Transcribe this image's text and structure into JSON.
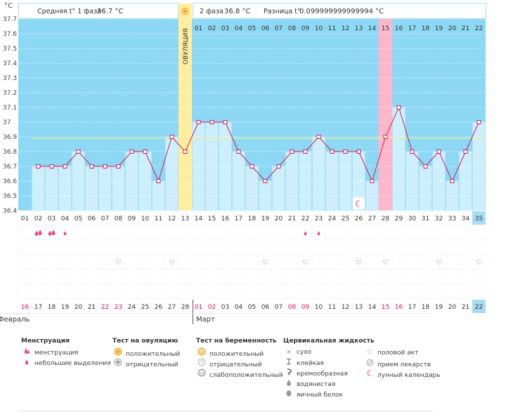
{
  "header": {
    "phase1_label": "Средняя t° 1 фаза",
    "phase1_value": "36.7 °С",
    "phase2_label": "2 фаза",
    "phase2_value": "36.8 °С",
    "diff_label": "Разница t°",
    "diff_value": "0.099999999999994 °С"
  },
  "axis": {
    "unit": "°С",
    "ovulation_label": "ОВУЛЯЦИЯ"
  },
  "months": {
    "feb": "Февраль",
    "mar": "Март"
  },
  "colors": {
    "sky": "#8dd8f5",
    "bar": "#cdeefc",
    "bar_border": "#a9dff5",
    "line": "#d0205a",
    "ovulation": "#ffee9d",
    "highlight": "#ffb6c8",
    "cover_line": "#e8f08a",
    "today_box": "#a7dbf3",
    "red_text": "#dd1155"
  },
  "chart_data": {
    "type": "line",
    "title": "",
    "ylabel": "°С",
    "ylim": [
      36.4,
      37.7
    ],
    "yticks": [
      37.7,
      37.6,
      37.5,
      37.4,
      37.3,
      37.2,
      37.1,
      37.0,
      36.9,
      36.8,
      36.7,
      36.6,
      36.5,
      36.4
    ],
    "ytick_labels": [
      "37.7",
      "37.6",
      "37.5",
      "37.4",
      "37.3",
      "37.2",
      "37.1",
      "37",
      "36.9",
      "36.8",
      "36.7",
      "36.6",
      "36.5",
      "36.4"
    ],
    "cycle_days": [
      "01",
      "02",
      "03",
      "04",
      "05",
      "06",
      "07",
      "08",
      "09",
      "10",
      "11",
      "12",
      "13",
      "14",
      "15",
      "16",
      "17",
      "18",
      "19",
      "20",
      "21",
      "22",
      "23",
      "24",
      "25",
      "26",
      "27",
      "28",
      "29",
      "30",
      "31",
      "32",
      "33",
      "34",
      "35"
    ],
    "phase2_day_labels": [
      "01",
      "02",
      "03",
      "04",
      "05",
      "06",
      "07",
      "08",
      "09",
      "10",
      "11",
      "12",
      "13",
      "14",
      "15",
      "16",
      "17",
      "18",
      "19",
      "20",
      "21",
      "22"
    ],
    "calendar_dates": [
      "16",
      "17",
      "18",
      "19",
      "20",
      "21",
      "22",
      "23",
      "24",
      "25",
      "26",
      "27",
      "28",
      "01",
      "02",
      "03",
      "04",
      "05",
      "06",
      "07",
      "08",
      "09",
      "10",
      "11",
      "12",
      "13",
      "14",
      "15",
      "16",
      "17",
      "18",
      "19",
      "20",
      "21",
      "22"
    ],
    "red_dates_indices": [
      0,
      6,
      7,
      13,
      14,
      20,
      21,
      27,
      28
    ],
    "series": [
      {
        "name": "Базальная температура",
        "values": [
          null,
          36.7,
          36.7,
          36.7,
          36.8,
          36.7,
          36.7,
          36.7,
          36.8,
          36.8,
          36.6,
          36.9,
          36.8,
          37.0,
          37.0,
          37.0,
          36.8,
          36.7,
          36.6,
          36.7,
          36.8,
          36.8,
          36.9,
          36.8,
          36.8,
          36.8,
          36.6,
          36.9,
          37.1,
          36.8,
          36.7,
          36.8,
          36.6,
          36.8,
          37.0
        ]
      }
    ],
    "cover_line": 36.89,
    "ovulation_day": 13,
    "highlight_day": 28,
    "today_day": 35,
    "moon_day": 26,
    "menstruation_days": {
      "heavy": [
        2,
        3
      ],
      "light": [
        4,
        22,
        23
      ]
    },
    "intercourse_days": [
      8,
      12,
      19,
      22,
      26,
      28,
      32,
      35
    ]
  },
  "legend": [
    {
      "title": "Менструация",
      "items": [
        {
          "icon": "menstruation-icon",
          "label": "менструация"
        },
        {
          "icon": "light-discharge-icon",
          "label": "небольшие выделения"
        }
      ]
    },
    {
      "title": "Тест на овуляцию",
      "items": [
        {
          "icon": "positive-ovulation-test-icon",
          "label": "положительный"
        },
        {
          "icon": "negative-ovulation-test-icon",
          "label": "отрицательный"
        }
      ]
    },
    {
      "title": "Тест на беременность",
      "items": [
        {
          "icon": "positive-pregnancy-test-icon",
          "label": "положительный"
        },
        {
          "icon": "negative-pregnancy-test-icon",
          "label": "отрицательный"
        },
        {
          "icon": "weak-pregnancy-test-icon",
          "label": "слабоположительный"
        }
      ]
    },
    {
      "title": "Цервикальная жидкость",
      "items": [
        {
          "icon": "dry-icon",
          "label": "сухо"
        },
        {
          "icon": "sticky-icon",
          "label": "клейкая"
        },
        {
          "icon": "creamy-icon",
          "label": "кремообразная"
        },
        {
          "icon": "watery-icon",
          "label": "водянистая"
        },
        {
          "icon": "egg-white-icon",
          "label": "яичный белок"
        }
      ]
    },
    {
      "title": "",
      "items": [
        {
          "icon": "heart-icon",
          "label": "половой акт"
        },
        {
          "icon": "medication-icon",
          "label": "прием лекарств"
        },
        {
          "icon": "moon-icon",
          "label": "лунный календарь"
        }
      ]
    }
  ]
}
